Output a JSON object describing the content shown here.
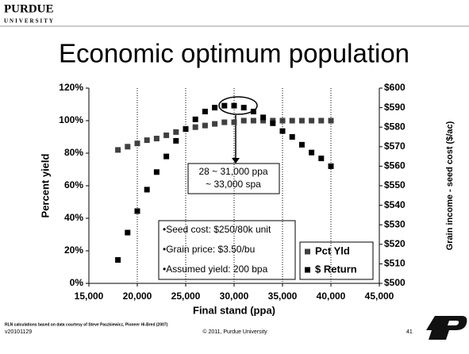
{
  "header": {
    "logo": "PURDUE",
    "logo_sub": "UNIVERSITY"
  },
  "title": "Economic optimum population",
  "chart_data": {
    "type": "scatter",
    "x": [
      18000,
      19000,
      20000,
      21000,
      22000,
      23000,
      24000,
      25000,
      26000,
      27000,
      28000,
      29000,
      30000,
      31000,
      32000,
      33000,
      34000,
      35000,
      36000,
      37000,
      38000,
      39000,
      40000
    ],
    "series": [
      {
        "name": "Pct Yld",
        "color": "#404040",
        "values": [
          82,
          84,
          86,
          88,
          89,
          91,
          93,
          95,
          96,
          97,
          98,
          99,
          99,
          100,
          100,
          100,
          100,
          100,
          100,
          100,
          100,
          100,
          100
        ]
      },
      {
        "name": "$ Return",
        "color": "#000000",
        "axis": "y2",
        "values": [
          512,
          526,
          537,
          548,
          557,
          565,
          573,
          579,
          584,
          588,
          590,
          591,
          591,
          590,
          588,
          585,
          582,
          578,
          575,
          571,
          567,
          564,
          560
        ]
      }
    ],
    "xlabel": "Final stand (ppa)",
    "ylabel": "Percent yield",
    "y2label": "Grain income - seed cost ($/ac)",
    "xlim": [
      15000,
      45000
    ],
    "xticks": [
      {
        "value": 15000,
        "label": "15,000"
      },
      {
        "value": 20000,
        "label": "20,000"
      },
      {
        "value": 25000,
        "label": "25,000"
      },
      {
        "value": 30000,
        "label": "30,000"
      },
      {
        "value": 35000,
        "label": "35,000"
      },
      {
        "value": 40000,
        "label": "40,000"
      },
      {
        "value": 45000,
        "label": "45,000"
      }
    ],
    "ylim": [
      0,
      120
    ],
    "yticks": [
      {
        "value": 0,
        "label": "0%"
      },
      {
        "value": 20,
        "label": "20%"
      },
      {
        "value": 40,
        "label": "40%"
      },
      {
        "value": 60,
        "label": "60%"
      },
      {
        "value": 80,
        "label": "80%"
      },
      {
        "value": 100,
        "label": "100%"
      },
      {
        "value": 120,
        "label": "120%"
      }
    ],
    "y2lim": [
      500,
      600
    ],
    "y2ticks": [
      {
        "value": 500,
        "label": "$500"
      },
      {
        "value": 510,
        "label": "$510"
      },
      {
        "value": 520,
        "label": "$520"
      },
      {
        "value": 530,
        "label": "$530"
      },
      {
        "value": 540,
        "label": "$540"
      },
      {
        "value": 550,
        "label": "$550"
      },
      {
        "value": 560,
        "label": "$560"
      },
      {
        "value": 570,
        "label": "$570"
      },
      {
        "value": 580,
        "label": "$580"
      },
      {
        "value": 590,
        "label": "$590"
      },
      {
        "value": 600,
        "label": "$600"
      }
    ],
    "grid": "x",
    "legend": "lower right",
    "annotations": [
      "28 ~ 31,000 ppa",
      "~ 33,000 spa"
    ],
    "notes": [
      "•Seed cost: $250/80k unit",
      "•Grain price: $3.50/bu",
      "•Assumed yield: 200 bpa"
    ]
  },
  "footer": {
    "source": "RLN calculations based on data courtesy of Steve Paszkiewicz, Pioneer Hi-Bred (2007)",
    "version": "v20101129",
    "copyright": "© 2011, Purdue University",
    "page": "41"
  }
}
